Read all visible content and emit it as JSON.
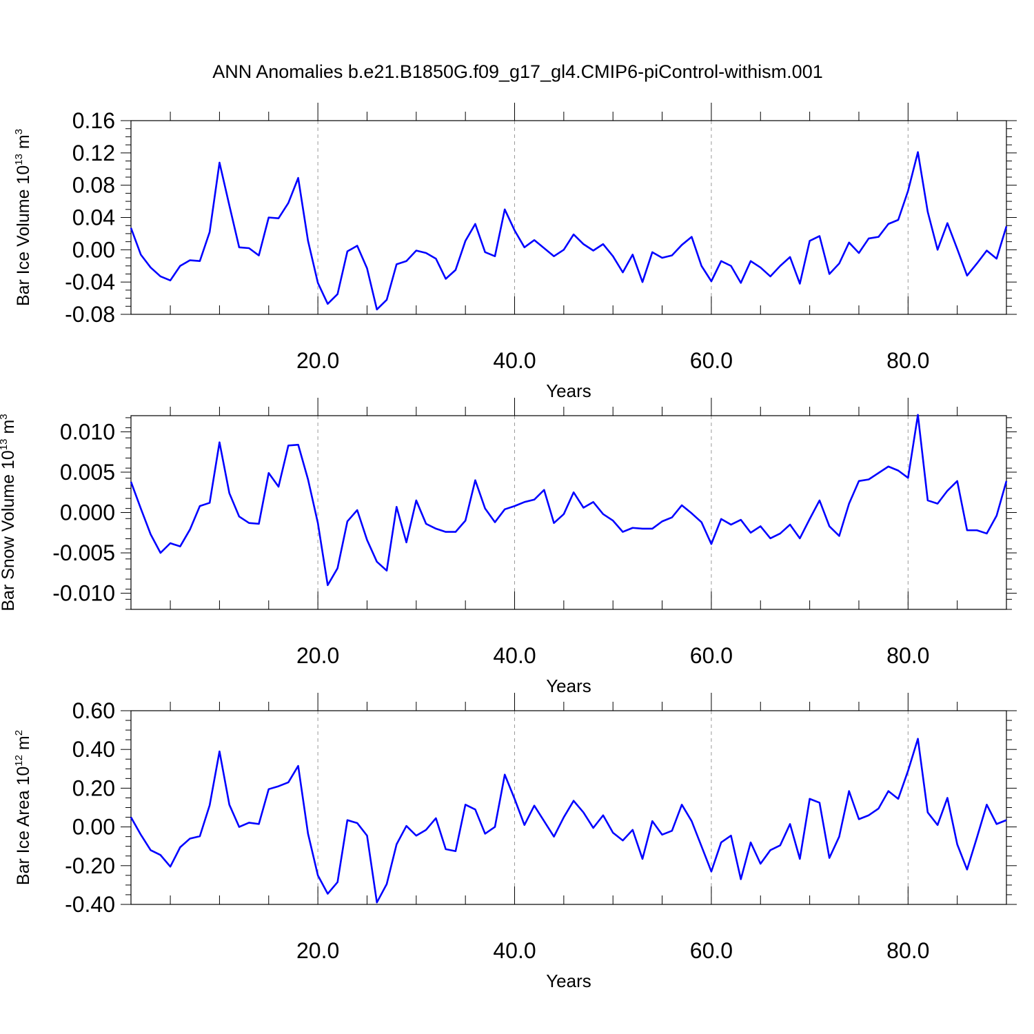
{
  "title": "ANN Anomalies b.e21.B1850G.f09_g17_gl4.CMIP6-piControl-withism.001",
  "colors": {
    "series": "#0000ff",
    "grid": "#999999"
  },
  "chart_data": [
    {
      "type": "line",
      "ylabel": {
        "text": "Bar Ice Volume 10",
        "sup": "13",
        "unit": " m",
        "unit_sup": "3"
      },
      "xlabel": "Years",
      "xlim": [
        1,
        90
      ],
      "ylim": [
        -0.08,
        0.16
      ],
      "x_ticks": [
        20,
        40,
        60,
        80
      ],
      "x_tick_labels": [
        "20.0",
        "40.0",
        "60.0",
        "80.0"
      ],
      "y_ticks": [
        -0.08,
        -0.04,
        0.0,
        0.04,
        0.08,
        0.12,
        0.16
      ],
      "y_tick_labels": [
        "-0.08",
        "-0.04",
        "0.00",
        "0.04",
        "0.08",
        "0.12",
        "0.16"
      ],
      "grid": "vertical dashed at major x ticks",
      "x": [
        1,
        2,
        3,
        4,
        5,
        6,
        7,
        8,
        9,
        10,
        11,
        12,
        13,
        14,
        15,
        16,
        17,
        18,
        19,
        20,
        21,
        22,
        23,
        24,
        25,
        26,
        27,
        28,
        29,
        30,
        31,
        32,
        33,
        34,
        35,
        36,
        37,
        38,
        39,
        40,
        41,
        42,
        43,
        44,
        45,
        46,
        47,
        48,
        49,
        50,
        51,
        52,
        53,
        54,
        55,
        56,
        57,
        58,
        59,
        60,
        61,
        62,
        63,
        64,
        65,
        66,
        67,
        68,
        69,
        70,
        71,
        72,
        73,
        74,
        75,
        76,
        77,
        78,
        79,
        80,
        81,
        82,
        83,
        84,
        85,
        86,
        87,
        88,
        89,
        90
      ],
      "values": [
        0.027,
        -0.006,
        -0.022,
        -0.033,
        -0.038,
        -0.02,
        -0.013,
        -0.014,
        0.022,
        0.108,
        0.055,
        0.003,
        0.002,
        -0.007,
        0.04,
        0.039,
        0.058,
        0.089,
        0.011,
        -0.041,
        -0.067,
        -0.055,
        -0.002,
        0.005,
        -0.023,
        -0.074,
        -0.062,
        -0.018,
        -0.014,
        -0.001,
        -0.004,
        -0.011,
        -0.036,
        -0.025,
        0.011,
        0.032,
        -0.003,
        -0.008,
        0.05,
        0.024,
        0.003,
        0.012,
        0.002,
        -0.008,
        0.0,
        0.019,
        0.007,
        -0.001,
        0.007,
        -0.008,
        -0.028,
        -0.006,
        -0.04,
        -0.003,
        -0.01,
        -0.007,
        0.006,
        0.016,
        -0.02,
        -0.039,
        -0.014,
        -0.02,
        -0.041,
        -0.014,
        -0.022,
        -0.033,
        -0.02,
        -0.009,
        -0.042,
        0.011,
        0.017,
        -0.03,
        -0.017,
        0.009,
        -0.004,
        0.014,
        0.016,
        0.032,
        0.037,
        0.073,
        0.121,
        0.047,
        0.0,
        0.033,
        0.001,
        -0.032,
        -0.017,
        -0.001,
        -0.011,
        0.029
      ]
    },
    {
      "type": "line",
      "ylabel": {
        "text": "Bar Snow Volume 10",
        "sup": "13",
        "unit": " m",
        "unit_sup": "3"
      },
      "xlabel": "Years",
      "xlim": [
        1,
        90
      ],
      "ylim": [
        -0.012,
        0.012
      ],
      "x_ticks": [
        20,
        40,
        60,
        80
      ],
      "x_tick_labels": [
        "20.0",
        "40.0",
        "60.0",
        "80.0"
      ],
      "y_ticks": [
        -0.01,
        -0.005,
        0.0,
        0.005,
        0.01
      ],
      "y_tick_labels": [
        "-0.010",
        "-0.005",
        "0.000",
        "0.005",
        "0.010"
      ],
      "grid": "vertical dashed at major x ticks",
      "x": [
        1,
        2,
        3,
        4,
        5,
        6,
        7,
        8,
        9,
        10,
        11,
        12,
        13,
        14,
        15,
        16,
        17,
        18,
        19,
        20,
        21,
        22,
        23,
        24,
        25,
        26,
        27,
        28,
        29,
        30,
        31,
        32,
        33,
        34,
        35,
        36,
        37,
        38,
        39,
        40,
        41,
        42,
        43,
        44,
        45,
        46,
        47,
        48,
        49,
        50,
        51,
        52,
        53,
        54,
        55,
        56,
        57,
        58,
        59,
        60,
        61,
        62,
        63,
        64,
        65,
        66,
        67,
        68,
        69,
        70,
        71,
        72,
        73,
        74,
        75,
        76,
        77,
        78,
        79,
        80,
        81,
        82,
        83,
        84,
        85,
        86,
        87,
        88,
        89,
        90
      ],
      "values": [
        0.0038,
        0.0005,
        -0.0027,
        -0.005,
        -0.0038,
        -0.0042,
        -0.0021,
        0.0008,
        0.0012,
        0.0087,
        0.0024,
        -0.0005,
        -0.0013,
        -0.0014,
        0.0049,
        0.0032,
        0.0083,
        0.0084,
        0.0041,
        -0.0013,
        -0.009,
        -0.0069,
        -0.0011,
        0.0003,
        -0.0034,
        -0.0061,
        -0.0072,
        0.0007,
        -0.0037,
        0.0015,
        -0.0014,
        -0.002,
        -0.0024,
        -0.0024,
        -0.001,
        0.004,
        0.0005,
        -0.0012,
        0.0004,
        0.0008,
        0.0013,
        0.0016,
        0.0028,
        -0.0013,
        -0.0002,
        0.0025,
        0.0006,
        0.0013,
        -0.0002,
        -0.001,
        -0.0024,
        -0.0019,
        -0.002,
        -0.002,
        -0.0011,
        -0.0006,
        0.0009,
        -0.0001,
        -0.0012,
        -0.0039,
        -0.0008,
        -0.0015,
        -0.0009,
        -0.0025,
        -0.0017,
        -0.0032,
        -0.0026,
        -0.0015,
        -0.0032,
        -0.0008,
        0.0015,
        -0.0017,
        -0.0029,
        0.0011,
        0.0039,
        0.0041,
        0.0049,
        0.0057,
        0.0052,
        0.0043,
        0.0121,
        0.0015,
        0.0011,
        0.0027,
        0.0039,
        -0.0022,
        -0.0022,
        -0.0026,
        -0.0004,
        0.0039
      ]
    },
    {
      "type": "line",
      "ylabel": {
        "text": "Bar Ice Area 10",
        "sup": "12",
        "unit": " m",
        "unit_sup": "2"
      },
      "xlabel": "Years",
      "xlim": [
        1,
        90
      ],
      "ylim": [
        -0.4,
        0.6
      ],
      "x_ticks": [
        20,
        40,
        60,
        80
      ],
      "x_tick_labels": [
        "20.0",
        "40.0",
        "60.0",
        "80.0"
      ],
      "y_ticks": [
        -0.4,
        -0.2,
        0.0,
        0.2,
        0.4,
        0.6
      ],
      "y_tick_labels": [
        "-0.40",
        "-0.20",
        "0.00",
        "0.20",
        "0.40",
        "0.60"
      ],
      "grid": "vertical dashed at major x ticks",
      "x": [
        1,
        2,
        3,
        4,
        5,
        6,
        7,
        8,
        9,
        10,
        11,
        12,
        13,
        14,
        15,
        16,
        17,
        18,
        19,
        20,
        21,
        22,
        23,
        24,
        25,
        26,
        27,
        28,
        29,
        30,
        31,
        32,
        33,
        34,
        35,
        36,
        37,
        38,
        39,
        40,
        41,
        42,
        43,
        44,
        45,
        46,
        47,
        48,
        49,
        50,
        51,
        52,
        53,
        54,
        55,
        56,
        57,
        58,
        59,
        60,
        61,
        62,
        63,
        64,
        65,
        66,
        67,
        68,
        69,
        70,
        71,
        72,
        73,
        74,
        75,
        76,
        77,
        78,
        79,
        80,
        81,
        82,
        83,
        84,
        85,
        86,
        87,
        88,
        89,
        90
      ],
      "values": [
        0.05,
        -0.04,
        -0.12,
        -0.145,
        -0.205,
        -0.105,
        -0.06,
        -0.048,
        0.112,
        0.39,
        0.115,
        0.0,
        0.022,
        0.015,
        0.195,
        0.21,
        0.23,
        0.315,
        -0.035,
        -0.25,
        -0.345,
        -0.285,
        0.035,
        0.02,
        -0.045,
        -0.39,
        -0.295,
        -0.09,
        0.005,
        -0.045,
        -0.015,
        0.045,
        -0.115,
        -0.125,
        0.115,
        0.09,
        -0.035,
        0.0,
        0.27,
        0.145,
        0.01,
        0.11,
        0.03,
        -0.05,
        0.05,
        0.135,
        0.075,
        -0.005,
        0.06,
        -0.03,
        -0.07,
        -0.015,
        -0.165,
        0.03,
        -0.04,
        -0.02,
        0.115,
        0.03,
        -0.1,
        -0.23,
        -0.08,
        -0.045,
        -0.27,
        -0.08,
        -0.19,
        -0.12,
        -0.095,
        0.015,
        -0.165,
        0.145,
        0.125,
        -0.16,
        -0.05,
        0.185,
        0.04,
        0.06,
        0.095,
        0.185,
        0.145,
        0.29,
        0.455,
        0.075,
        0.01,
        0.15,
        -0.09,
        -0.22,
        -0.055,
        0.115,
        0.015,
        0.035
      ]
    }
  ]
}
